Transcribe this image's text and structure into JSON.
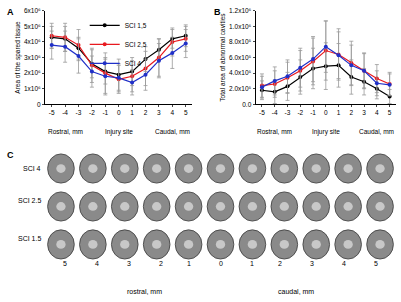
{
  "chart_data": [
    {
      "type": "line",
      "panel": "A",
      "ylabel": "Area of the spared tissue",
      "annotations": [
        {
          "text": "Rostral, mm",
          "x": -4
        },
        {
          "text": "Injury site",
          "x": 0
        },
        {
          "text": "Caudal, mm",
          "x": 4
        }
      ],
      "x": [
        -5,
        -4,
        -3,
        -2,
        -1,
        0,
        1,
        2,
        3,
        4,
        5
      ],
      "series": [
        {
          "name": "SCI 1,5",
          "color": "#000000",
          "marker": "circle",
          "values": [
            4300000,
            4200000,
            3600000,
            2600000,
            2100000,
            1900000,
            2100000,
            2900000,
            3500000,
            4200000,
            4400000
          ],
          "errors": [
            700000,
            800000,
            700000,
            900000,
            800000,
            1000000,
            900000,
            800000,
            700000,
            600000,
            700000
          ]
        },
        {
          "name": "SCI 2,5",
          "color": "#e8191f",
          "marker": "circle",
          "values": [
            4400000,
            4300000,
            3800000,
            2500000,
            2000000,
            1600000,
            1800000,
            2300000,
            3000000,
            4000000,
            4200000
          ],
          "errors": [
            800000,
            900000,
            1000000,
            1100000,
            1300000,
            900000,
            1000000,
            1100000,
            1200000,
            900000,
            800000
          ]
        },
        {
          "name": "SCI 4",
          "color": "#2030c8",
          "marker": "circle",
          "values": [
            3800000,
            3700000,
            3100000,
            2100000,
            1800000,
            1700000,
            1400000,
            1900000,
            2800000,
            3300000,
            3900000
          ],
          "errors": [
            900000,
            1000000,
            1100000,
            1000000,
            1200000,
            900000,
            800000,
            1000000,
            1100000,
            1000000,
            900000
          ]
        }
      ],
      "xlim": [
        -5.5,
        5.5
      ],
      "xticks": [
        -5,
        -4,
        -3,
        -2,
        -1,
        0,
        1,
        2,
        3,
        4,
        5
      ],
      "ylim": [
        0,
        6000000
      ],
      "yticks": [
        0,
        {
          "value": 1000000,
          "label": "1x10⁶"
        },
        {
          "value": 2000000,
          "label": "2x10⁶"
        },
        {
          "value": 3000000,
          "label": "3x10⁶"
        },
        {
          "value": 4000000,
          "label": "4x10⁶"
        },
        {
          "value": 5000000,
          "label": "5x10⁶"
        },
        {
          "value": 6000000,
          "label": "6x10⁶"
        }
      ],
      "legend": "upper center",
      "grid": false
    },
    {
      "type": "line",
      "panel": "B",
      "ylabel": "Total area of abnormal cavities",
      "annotations": [
        {
          "text": "Rostral, mm",
          "x": -4
        },
        {
          "text": "Injury site",
          "x": 0
        },
        {
          "text": "Caudal, mm",
          "x": 4
        }
      ],
      "x": [
        -5,
        -4,
        -3,
        -2,
        -1,
        0,
        1,
        2,
        3,
        4,
        5
      ],
      "series": [
        {
          "name": "SCI 1,5",
          "color": "#000000",
          "marker": "circle",
          "values": [
            180000,
            160000,
            230000,
            350000,
            460000,
            490000,
            500000,
            350000,
            290000,
            200000,
            100000
          ],
          "errors": [
            120000,
            150000,
            180000,
            220000,
            260000,
            300000,
            280000,
            220000,
            170000,
            130000,
            90000
          ]
        },
        {
          "name": "SCI 2,5",
          "color": "#e8191f",
          "marker": "circle",
          "values": [
            240000,
            260000,
            340000,
            430000,
            550000,
            690000,
            640000,
            530000,
            430000,
            330000,
            260000
          ],
          "errors": [
            150000,
            170000,
            200000,
            260000,
            300000,
            380000,
            330000,
            280000,
            230000,
            180000,
            150000
          ]
        },
        {
          "name": "SCI 4",
          "color": "#2030c8",
          "marker": "circle",
          "values": [
            220000,
            300000,
            360000,
            470000,
            580000,
            740000,
            630000,
            500000,
            430000,
            270000,
            250000
          ],
          "errors": [
            140000,
            180000,
            210000,
            250000,
            290000,
            330000,
            300000,
            260000,
            220000,
            160000,
            140000
          ]
        }
      ],
      "xlim": [
        -5.5,
        5.5
      ],
      "xticks": [
        -5,
        -4,
        -3,
        -2,
        -1,
        0,
        1,
        2,
        3,
        4,
        5
      ],
      "ylim": [
        0,
        1200000
      ],
      "yticks": [
        {
          "value": 0,
          "label": "0.0"
        },
        {
          "value": 200000,
          "label": "2.0x10⁵"
        },
        {
          "value": 400000,
          "label": "4.0x10⁵"
        },
        {
          "value": 600000,
          "label": "6.0x10⁵"
        },
        {
          "value": 800000,
          "label": "8.0x10⁵"
        },
        {
          "value": 1000000,
          "label": "1.0x10⁶"
        },
        {
          "value": 1200000,
          "label": "1.2x10⁶"
        }
      ],
      "grid": false
    }
  ],
  "image_panel": {
    "panel": "C",
    "rows": [
      "SCI 4",
      "SCI 2.5",
      "SCI 1.5"
    ],
    "columns": [
      "5",
      "4",
      "3",
      "2",
      "1",
      "0",
      "1",
      "2",
      "3",
      "4",
      "5"
    ],
    "column_groups": [
      "rostral, mm",
      "caudal, mm"
    ]
  }
}
